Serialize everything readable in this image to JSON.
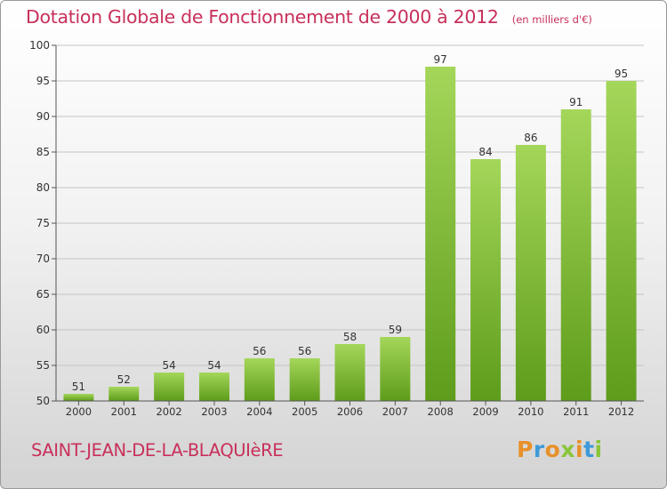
{
  "header": {
    "title": "Dotation Globale de Fonctionnement de 2000 à 2012",
    "subtitle": "(en milliers d'€)"
  },
  "footer": {
    "commune": "SAINT-JEAN-DE-LA-BLAQUIèRE",
    "logo": "Proxiti",
    "logo_letters": [
      {
        "ch": "P",
        "color": "#e8902a"
      },
      {
        "ch": "r",
        "color": "#3d9ad8"
      },
      {
        "ch": "o",
        "color": "#e8902a"
      },
      {
        "ch": "x",
        "color": "#8ac53a"
      },
      {
        "ch": "i",
        "color": "#e8902a"
      },
      {
        "ch": "t",
        "color": "#3d9ad8"
      },
      {
        "ch": "i",
        "color": "#8ac53a"
      }
    ]
  },
  "colors": {
    "accent": "#c8305a",
    "bar_light": "#a4d65a",
    "bar_dark": "#5e9c1b"
  },
  "chart_data": {
    "type": "bar",
    "categories": [
      "2000",
      "2001",
      "2002",
      "2003",
      "2004",
      "2005",
      "2006",
      "2007",
      "2008",
      "2009",
      "2010",
      "2011",
      "2012"
    ],
    "values": [
      51,
      52,
      54,
      54,
      56,
      56,
      58,
      59,
      97,
      84,
      86,
      91,
      95
    ],
    "title": "Dotation Globale de Fonctionnement de 2000 à 2012",
    "subtitle": "(en milliers d'€)",
    "ylim": [
      50,
      100
    ],
    "yticks": [
      50,
      55,
      60,
      65,
      70,
      75,
      80,
      85,
      90,
      95,
      100
    ],
    "grid": true,
    "legend": "none"
  }
}
